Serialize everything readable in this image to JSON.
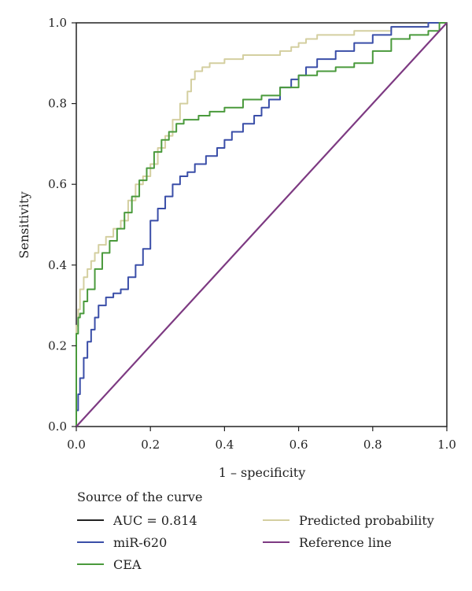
{
  "chart_data": {
    "type": "line",
    "title": "",
    "xlabel": "1 – specificity",
    "ylabel": "Sensitivity",
    "xlim": [
      0,
      1
    ],
    "ylim": [
      0,
      1
    ],
    "x_ticks": [
      "0.0",
      "0.2",
      "0.4",
      "0.6",
      "0.8",
      "1.0"
    ],
    "y_ticks": [
      "0.0",
      "0.2",
      "0.4",
      "0.6",
      "0.8",
      "1.0"
    ],
    "grid": false,
    "legend_title": "Source of the curve",
    "legend_position": "bottom",
    "legend": [
      {
        "label": "AUC = 0.814",
        "color": "#222222"
      },
      {
        "label": "miR-620",
        "color": "#3a4ea8"
      },
      {
        "label": "CEA",
        "color": "#4a9a3c"
      },
      {
        "label": "Predicted probability",
        "color": "#d4cfa0"
      },
      {
        "label": "Reference line",
        "color": "#7d3a82"
      }
    ],
    "series": [
      {
        "name": "Predicted probability",
        "color": "#d4cfa0",
        "x": [
          0,
          0,
          0.005,
          0.01,
          0.02,
          0.03,
          0.04,
          0.05,
          0.06,
          0.08,
          0.1,
          0.12,
          0.14,
          0.16,
          0.18,
          0.2,
          0.22,
          0.24,
          0.26,
          0.28,
          0.3,
          0.31,
          0.32,
          0.34,
          0.36,
          0.4,
          0.45,
          0.5,
          0.55,
          0.58,
          0.6,
          0.62,
          0.65,
          0.7,
          0.75,
          0.8,
          0.85,
          0.9,
          0.95,
          1.0
        ],
        "y": [
          0,
          0.14,
          0.25,
          0.29,
          0.34,
          0.37,
          0.39,
          0.41,
          0.43,
          0.45,
          0.47,
          0.49,
          0.51,
          0.56,
          0.6,
          0.62,
          0.65,
          0.69,
          0.72,
          0.76,
          0.8,
          0.83,
          0.86,
          0.88,
          0.89,
          0.9,
          0.91,
          0.92,
          0.92,
          0.93,
          0.94,
          0.95,
          0.96,
          0.97,
          0.97,
          0.98,
          0.98,
          0.99,
          0.99,
          1.0
        ]
      },
      {
        "name": "miR-620",
        "color": "#3a4ea8",
        "x": [
          0,
          0.005,
          0.01,
          0.02,
          0.03,
          0.04,
          0.05,
          0.06,
          0.08,
          0.1,
          0.12,
          0.14,
          0.16,
          0.18,
          0.2,
          0.22,
          0.24,
          0.26,
          0.28,
          0.3,
          0.32,
          0.35,
          0.38,
          0.4,
          0.42,
          0.45,
          0.48,
          0.5,
          0.52,
          0.55,
          0.58,
          0.6,
          0.62,
          0.65,
          0.7,
          0.75,
          0.8,
          0.85,
          0.95,
          1.0
        ],
        "y": [
          0,
          0.04,
          0.08,
          0.12,
          0.17,
          0.21,
          0.24,
          0.27,
          0.3,
          0.32,
          0.33,
          0.34,
          0.37,
          0.4,
          0.44,
          0.51,
          0.54,
          0.57,
          0.6,
          0.62,
          0.63,
          0.65,
          0.67,
          0.69,
          0.71,
          0.73,
          0.75,
          0.77,
          0.79,
          0.81,
          0.84,
          0.86,
          0.87,
          0.89,
          0.91,
          0.93,
          0.95,
          0.97,
          0.99,
          1.0
        ]
      },
      {
        "name": "CEA",
        "color": "#4a9a3c",
        "x": [
          0,
          0.005,
          0.01,
          0.02,
          0.03,
          0.05,
          0.07,
          0.09,
          0.11,
          0.13,
          0.15,
          0.17,
          0.19,
          0.21,
          0.23,
          0.25,
          0.27,
          0.29,
          0.31,
          0.33,
          0.36,
          0.4,
          0.45,
          0.5,
          0.55,
          0.6,
          0.65,
          0.7,
          0.75,
          0.8,
          0.85,
          0.9,
          0.95,
          0.98,
          1.0
        ],
        "y": [
          0,
          0.23,
          0.27,
          0.28,
          0.31,
          0.34,
          0.39,
          0.43,
          0.46,
          0.49,
          0.53,
          0.57,
          0.61,
          0.64,
          0.68,
          0.71,
          0.73,
          0.75,
          0.76,
          0.76,
          0.77,
          0.78,
          0.79,
          0.81,
          0.82,
          0.84,
          0.87,
          0.88,
          0.89,
          0.9,
          0.93,
          0.96,
          0.97,
          0.98,
          1.0
        ]
      },
      {
        "name": "Reference line",
        "color": "#7d3a82",
        "x": [
          0,
          1
        ],
        "y": [
          0,
          1
        ]
      }
    ]
  }
}
